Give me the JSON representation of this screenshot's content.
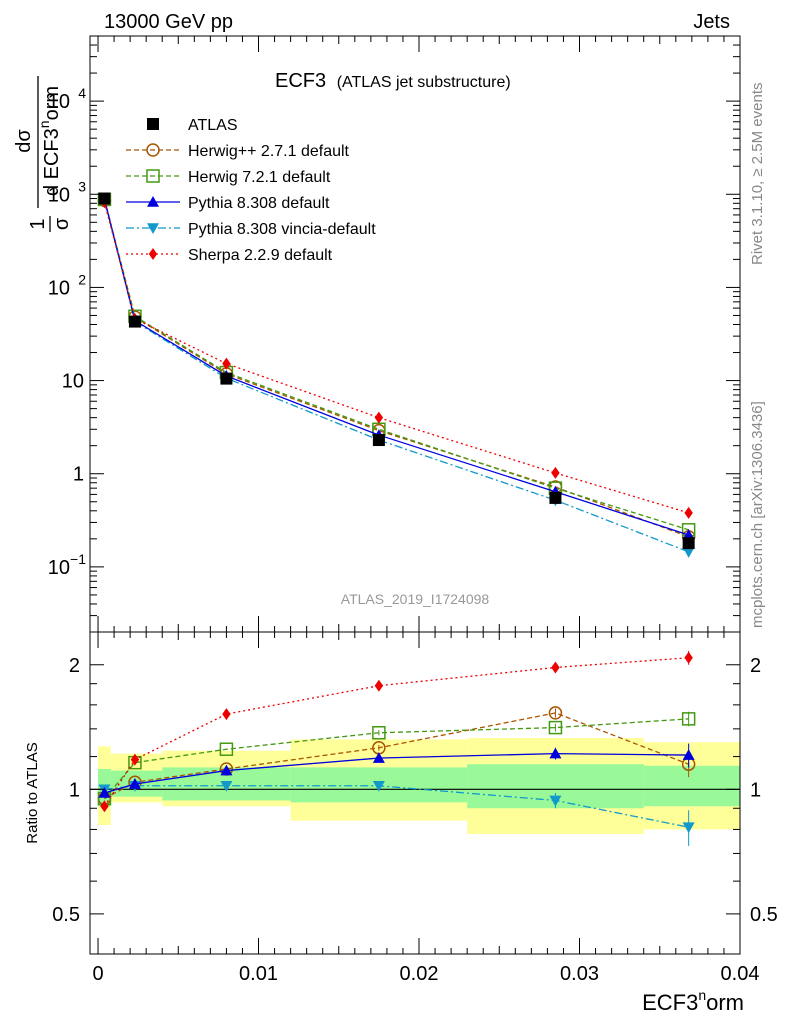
{
  "header": {
    "left": "13000 GeV pp",
    "right": "Jets"
  },
  "colors": {
    "band_inner": "#99f999",
    "band_outer": "#ffff99",
    "herwig_pp": "#aa5500",
    "herwig7": "#449911",
    "pythia": "#0000dd",
    "vincia": "#1199cc",
    "sherpa": "#ee0000",
    "side_text": "#888888"
  },
  "side_text": {
    "top": "Rivet 3.1.10, ≥ 2.5M events",
    "bottom": "mcplots.cern.ch [arXiv:1306.3436]"
  },
  "chart_data": [
    {
      "type": "line",
      "title": "ECF3",
      "subtitle": "(ATLAS jet substructure)",
      "analysis_label": "ATLAS_2019_I1724098",
      "ylabel": {
        "frac1_num": "1",
        "frac1_den": "σ",
        "frac2_num": "dσ",
        "frac2_den": "d ECF3",
        "sup": "n",
        "den_tail": "orm"
      },
      "yscale": "log",
      "ylim": [
        0.02,
        50000
      ],
      "xlim": [
        -0.0005,
        0.04
      ],
      "grid": false,
      "legend_position": "top-left",
      "y_ticks": [
        {
          "v": 0.1,
          "base": "10",
          "exp": "−1"
        },
        {
          "v": 1,
          "base": "1",
          "exp": ""
        },
        {
          "v": 10,
          "base": "10",
          "exp": ""
        },
        {
          "v": 100,
          "base": "10",
          "exp": "2"
        },
        {
          "v": 1000,
          "base": "10",
          "exp": "3"
        },
        {
          "v": 10000,
          "base": "10",
          "exp": "4"
        }
      ],
      "x": [
        0.0004,
        0.0023,
        0.008,
        0.0175,
        0.0285,
        0.0368
      ],
      "series": [
        {
          "name": "ATLAS",
          "key": "atlas",
          "values": [
            900,
            43,
            10.5,
            2.3,
            0.55,
            0.18
          ]
        },
        {
          "name": "Herwig++ 2.7.1 default",
          "key": "herwig_pp",
          "values": [
            860,
            48,
            11.8,
            2.9,
            0.72,
            0.21
          ]
        },
        {
          "name": "Herwig 7.2.1 default",
          "key": "herwig7",
          "values": [
            880,
            49,
            12.2,
            3.0,
            0.7,
            0.25
          ]
        },
        {
          "name": "Pythia 8.308 default",
          "key": "pythia",
          "values": [
            880,
            44,
            11.2,
            2.6,
            0.64,
            0.22
          ]
        },
        {
          "name": "Pythia 8.308 vincia-default",
          "key": "vincia",
          "values": [
            910,
            43,
            10.6,
            2.3,
            0.52,
            0.145
          ]
        },
        {
          "name": "Sherpa 2.2.9 default",
          "key": "sherpa",
          "values": [
            820,
            46,
            15.2,
            4.0,
            1.02,
            0.38
          ]
        }
      ]
    },
    {
      "type": "line",
      "ylabel": "Ratio to ATLAS",
      "xlabel": "ECF3",
      "xlabel_sup": "n",
      "xlabel_tail": "orm",
      "yscale": "log",
      "ylim": [
        0.4,
        2.4
      ],
      "xlim": [
        -0.0005,
        0.04
      ],
      "x_ticks": [
        {
          "v": 0,
          "label": "0"
        },
        {
          "v": 0.01,
          "label": "0.01"
        },
        {
          "v": 0.02,
          "label": "0.02"
        },
        {
          "v": 0.03,
          "label": "0.03"
        },
        {
          "v": 0.04,
          "label": "0.04"
        }
      ],
      "y_ticks": [
        {
          "v": 0.5,
          "label": "0.5"
        },
        {
          "v": 1,
          "label": "1"
        },
        {
          "v": 2,
          "label": "2"
        }
      ],
      "reference_line": 1,
      "bins": [
        {
          "lo": 0.0,
          "hi": 0.0008,
          "inner": [
            0.91,
            1.12
          ],
          "outer": [
            0.82,
            1.27
          ]
        },
        {
          "lo": 0.0008,
          "hi": 0.004,
          "inner": [
            0.96,
            1.11
          ],
          "outer": [
            0.93,
            1.22
          ]
        },
        {
          "lo": 0.004,
          "hi": 0.012,
          "inner": [
            0.94,
            1.13
          ],
          "outer": [
            0.91,
            1.24
          ]
        },
        {
          "lo": 0.012,
          "hi": 0.023,
          "inner": [
            0.93,
            1.13
          ],
          "outer": [
            0.84,
            1.32
          ]
        },
        {
          "lo": 0.023,
          "hi": 0.034,
          "inner": [
            0.9,
            1.15
          ],
          "outer": [
            0.78,
            1.33
          ]
        },
        {
          "lo": 0.034,
          "hi": 0.04,
          "inner": [
            0.91,
            1.14
          ],
          "outer": [
            0.8,
            1.3
          ]
        }
      ],
      "x": [
        0.0004,
        0.0023,
        0.008,
        0.0175,
        0.0285,
        0.0368
      ],
      "series": [
        {
          "name": "Herwig++ 2.7.1 default",
          "key": "herwig_pp",
          "values": [
            0.95,
            1.04,
            1.12,
            1.26,
            1.53,
            1.15
          ],
          "err": [
            0,
            0,
            0,
            0.02,
            0.04,
            0.08
          ]
        },
        {
          "name": "Herwig 7.2.1 default",
          "key": "herwig7",
          "values": [
            0.95,
            1.16,
            1.25,
            1.37,
            1.41,
            1.48
          ],
          "err": [
            0,
            0,
            0,
            0.02,
            0.03,
            0.06
          ]
        },
        {
          "name": "Pythia 8.308 default",
          "key": "pythia",
          "values": [
            0.98,
            1.03,
            1.11,
            1.19,
            1.22,
            1.21
          ],
          "err": [
            0,
            0,
            0,
            0.02,
            0.04,
            0.08
          ]
        },
        {
          "name": "Pythia 8.308 vincia-default",
          "key": "vincia",
          "values": [
            1.0,
            1.02,
            1.02,
            1.02,
            0.94,
            0.81
          ],
          "err": [
            0,
            0,
            0,
            0.02,
            0.04,
            0.08
          ]
        },
        {
          "name": "Sherpa 2.2.9 default",
          "key": "sherpa",
          "values": [
            0.91,
            1.18,
            1.52,
            1.78,
            1.97,
            2.08
          ],
          "err": [
            0,
            0,
            0,
            0.02,
            0.04,
            0.08
          ]
        }
      ]
    }
  ]
}
